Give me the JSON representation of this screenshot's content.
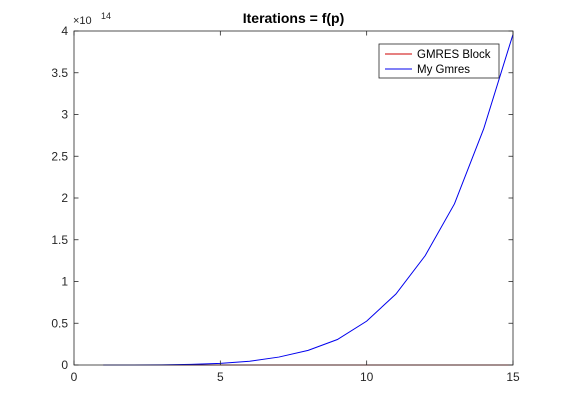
{
  "chart_data": {
    "type": "line",
    "title": "Iterations = f(p)",
    "xlabel": "",
    "ylabel": "",
    "xlim": [
      0,
      15
    ],
    "ylim": [
      0,
      400000000000000.0
    ],
    "x_ticks": [
      0,
      5,
      10,
      15
    ],
    "x_tick_labels": [
      "0",
      "5",
      "10",
      "15"
    ],
    "y_ticks": [
      0,
      50000000000000.0,
      100000000000000.0,
      150000000000000.0,
      200000000000000.0,
      250000000000000.0,
      300000000000000.0,
      350000000000000.0,
      400000000000000.0
    ],
    "y_tick_labels": [
      "0",
      "0.5",
      "1",
      "1.5",
      "2",
      "2.5",
      "3",
      "3.5",
      "4"
    ],
    "y_exponent": {
      "base": "×10",
      "power": "14"
    },
    "grid": false,
    "legend_position": "top-right",
    "x": [
      1,
      2,
      3,
      4,
      5,
      6,
      7,
      8,
      9,
      10,
      11,
      12,
      13,
      14,
      15
    ],
    "series": [
      {
        "name": "GMRES Block",
        "color": "#cc0000",
        "values": [
          0,
          0,
          0,
          0,
          0,
          0,
          0,
          0,
          0,
          0,
          0,
          0,
          0,
          0,
          0
        ]
      },
      {
        "name": "My Gmres",
        "color": "#0000ee",
        "values": [
          0,
          0,
          100000000000.0,
          700000000000.0,
          1900000000000.0,
          4500000000000.0,
          9500000000000.0,
          17500000000000.0,
          30500000000000.0,
          52500000000000.0,
          85000000000000.0,
          131000000000000.0,
          193000000000000.0,
          283000000000000.0,
          396000000000000.0
        ]
      }
    ]
  }
}
